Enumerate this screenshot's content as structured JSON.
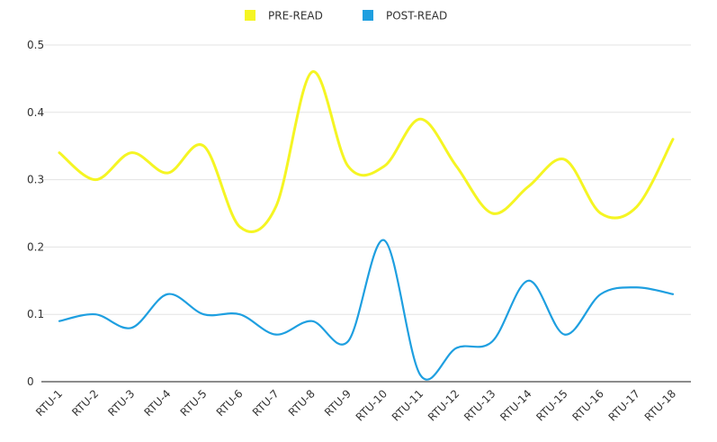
{
  "chart_data": {
    "type": "line",
    "title": "",
    "xlabel": "",
    "ylabel": "",
    "categories": [
      "RTU-1",
      "RTU-2",
      "RTU-3",
      "RTU-4",
      "RTU-5",
      "RTU-6",
      "RTU-7",
      "RTU-8",
      "RTU-9",
      "RTU-10",
      "RTU-11",
      "RTU-12",
      "RTU-13",
      "RTU-14",
      "RTU-15",
      "RTU-16",
      "RTU-17",
      "RTU-18"
    ],
    "series": [
      {
        "name": "PRE-READ",
        "color": "#f5f523",
        "values": [
          0.34,
          0.3,
          0.34,
          0.31,
          0.35,
          0.23,
          0.26,
          0.46,
          0.32,
          0.32,
          0.39,
          0.32,
          0.25,
          0.29,
          0.33,
          0.25,
          0.26,
          0.36
        ]
      },
      {
        "name": "POST-READ",
        "color": "#1e9fe0",
        "values": [
          0.09,
          0.1,
          0.08,
          0.13,
          0.1,
          0.1,
          0.07,
          0.09,
          0.06,
          0.21,
          0.01,
          0.05,
          0.06,
          0.15,
          0.07,
          0.13,
          0.14,
          0.13
        ]
      }
    ],
    "yticks": [
      "0",
      "0.1",
      "0.2",
      "0.3",
      "0.4",
      "0.5"
    ],
    "ylim": [
      0,
      0.5
    ],
    "grid": true,
    "legend_position": "top-center",
    "smooth": true
  }
}
